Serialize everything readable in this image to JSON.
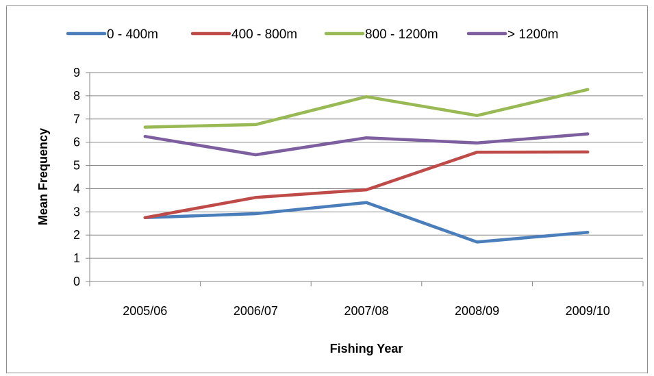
{
  "chart_data": {
    "type": "line",
    "title": "",
    "xlabel": "Fishing Year",
    "ylabel": "Mean Frequency",
    "categories": [
      "2005/06",
      "2006/07",
      "2007/08",
      "2008/09",
      "2009/10"
    ],
    "ylim": [
      0,
      9
    ],
    "yticks": [
      "0",
      "1",
      "2",
      "3",
      "4",
      "5",
      "6",
      "7",
      "8",
      "9"
    ],
    "grid": true,
    "legend_position": "top",
    "series": [
      {
        "name": "0 - 400m",
        "color": "#4a7ebb",
        "values": [
          2.75,
          2.92,
          3.4,
          1.7,
          2.12
        ]
      },
      {
        "name": "400 - 800m",
        "color": "#be4b48",
        "values": [
          2.75,
          3.62,
          3.95,
          5.57,
          5.58
        ]
      },
      {
        "name": "800 - 1200m",
        "color": "#98b954",
        "values": [
          6.65,
          6.76,
          7.96,
          7.15,
          8.27
        ]
      },
      {
        "name": "> 1200m",
        "color": "#7d5fa0",
        "values": [
          6.25,
          5.46,
          6.19,
          5.97,
          6.36
        ]
      }
    ]
  }
}
